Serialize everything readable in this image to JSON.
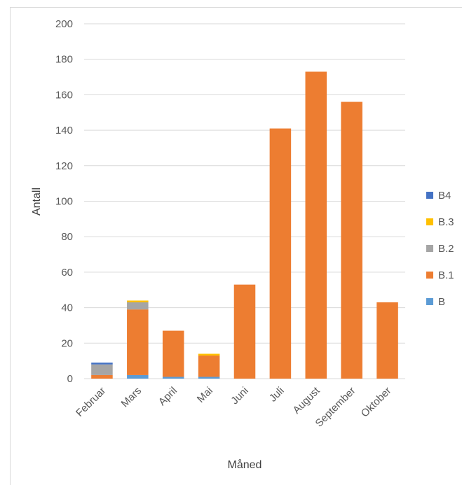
{
  "chart_data": {
    "type": "bar",
    "stacked": true,
    "title": "",
    "xlabel": "Måned",
    "ylabel": "Antall",
    "ylim": [
      0,
      200
    ],
    "yticks": [
      0,
      20,
      40,
      60,
      80,
      100,
      120,
      140,
      160,
      180,
      200
    ],
    "grid": true,
    "legend_position": "right",
    "categories": [
      "Februar",
      "Mars",
      "April",
      "Mai",
      "Juni",
      "Juli",
      "August",
      "September",
      "Oktober"
    ],
    "series": [
      {
        "name": "B",
        "color": "#5b9bd5",
        "values": [
          0,
          2,
          1,
          1,
          0,
          0,
          0,
          0,
          0
        ]
      },
      {
        "name": "B.1",
        "color": "#ed7d31",
        "values": [
          2,
          37,
          26,
          12,
          53,
          141,
          173,
          156,
          43
        ]
      },
      {
        "name": "B.2",
        "color": "#a5a5a5",
        "values": [
          6,
          4,
          0,
          0,
          0,
          0,
          0,
          0,
          0
        ]
      },
      {
        "name": "B.3",
        "color": "#ffc000",
        "values": [
          0,
          1,
          0,
          1,
          0,
          0,
          0,
          0,
          0
        ]
      },
      {
        "name": "B4",
        "color": "#4472c4",
        "values": [
          1,
          0,
          0,
          0,
          0,
          0,
          0,
          0,
          0
        ]
      }
    ]
  }
}
